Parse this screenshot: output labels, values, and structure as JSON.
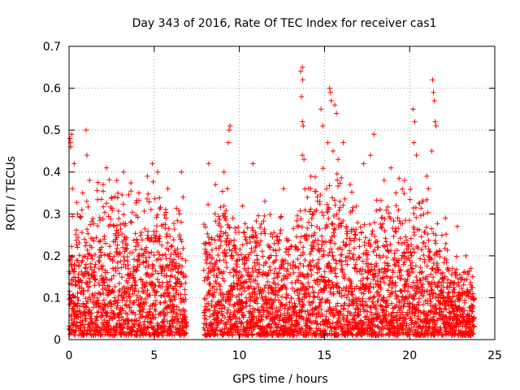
{
  "chart_data": {
    "type": "scatter",
    "title": "Day 343 of 2016, Rate Of TEC Index for receiver cas1",
    "xlabel": "GPS time / hours",
    "ylabel": "ROTI / TECUs",
    "xlim": [
      0,
      25
    ],
    "ylim": [
      0,
      0.7
    ],
    "x_ticks": [
      0,
      5,
      10,
      15,
      20,
      25
    ],
    "y_ticks": [
      0,
      0.1,
      0.2,
      0.3,
      0.4,
      0.5,
      0.6,
      0.7
    ],
    "x_tick_labels": [
      "0",
      "5",
      "10",
      "15",
      "20",
      "25"
    ],
    "y_tick_labels": [
      "0",
      "0.1",
      "0.2",
      "0.3",
      "0.4",
      "0.5",
      "0.6",
      "0.7"
    ],
    "grid": true,
    "marker": "+",
    "color": "#ff0000",
    "data_gaps_hours": [
      [
        6.9,
        7.9
      ],
      [
        23.8,
        25
      ]
    ],
    "series": [
      {
        "name": "ROTI",
        "points": [
          [
            0.05,
            0.48
          ],
          [
            0.08,
            0.47
          ],
          [
            0.1,
            0.46
          ],
          [
            0.15,
            0.49
          ],
          [
            0.2,
            0.36
          ],
          [
            0.3,
            0.42
          ],
          [
            0.5,
            0.3
          ],
          [
            0.8,
            0.35
          ],
          [
            1.0,
            0.5
          ],
          [
            1.05,
            0.44
          ],
          [
            1.2,
            0.38
          ],
          [
            2.0,
            0.37
          ],
          [
            2.2,
            0.41
          ],
          [
            2.8,
            0.38
          ],
          [
            3.2,
            0.4
          ],
          [
            4.1,
            0.35
          ],
          [
            4.6,
            0.39
          ],
          [
            4.9,
            0.42
          ],
          [
            5.2,
            0.4
          ],
          [
            5.8,
            0.36
          ],
          [
            6.6,
            0.4
          ],
          [
            6.7,
            0.34
          ],
          [
            8.2,
            0.42
          ],
          [
            8.6,
            0.37
          ],
          [
            9.1,
            0.4
          ],
          [
            9.3,
            0.36
          ],
          [
            9.35,
            0.47
          ],
          [
            9.4,
            0.5
          ],
          [
            9.45,
            0.51
          ],
          [
            10.8,
            0.42
          ],
          [
            11.5,
            0.33
          ],
          [
            12.6,
            0.36
          ],
          [
            13.6,
            0.64
          ],
          [
            13.7,
            0.65
          ],
          [
            13.72,
            0.62
          ],
          [
            13.65,
            0.58
          ],
          [
            13.7,
            0.52
          ],
          [
            13.75,
            0.51
          ],
          [
            13.7,
            0.44
          ],
          [
            13.8,
            0.43
          ],
          [
            14.2,
            0.39
          ],
          [
            14.8,
            0.55
          ],
          [
            14.9,
            0.51
          ],
          [
            15.2,
            0.47
          ],
          [
            15.3,
            0.6
          ],
          [
            15.35,
            0.59
          ],
          [
            15.4,
            0.57
          ],
          [
            15.6,
            0.56
          ],
          [
            15.7,
            0.54
          ],
          [
            15.5,
            0.45
          ],
          [
            15.8,
            0.43
          ],
          [
            16.1,
            0.47
          ],
          [
            16.5,
            0.37
          ],
          [
            17.3,
            0.42
          ],
          [
            17.7,
            0.44
          ],
          [
            17.9,
            0.49
          ],
          [
            18.5,
            0.38
          ],
          [
            18.9,
            0.41
          ],
          [
            19.2,
            0.35
          ],
          [
            19.7,
            0.38
          ],
          [
            20.2,
            0.55
          ],
          [
            20.3,
            0.52
          ],
          [
            20.25,
            0.47
          ],
          [
            20.4,
            0.44
          ],
          [
            20.8,
            0.33
          ],
          [
            21.0,
            0.39
          ],
          [
            21.1,
            0.36
          ],
          [
            21.35,
            0.62
          ],
          [
            21.4,
            0.59
          ],
          [
            21.45,
            0.57
          ],
          [
            21.5,
            0.52
          ],
          [
            21.55,
            0.51
          ],
          [
            21.3,
            0.45
          ],
          [
            22.1,
            0.29
          ],
          [
            22.8,
            0.27
          ],
          [
            23.3,
            0.2
          ],
          [
            23.6,
            0.17
          ],
          [
            23.7,
            0.15
          ]
        ]
      }
    ],
    "dense_band": {
      "note": "dense scatter of thousands of + markers, sampled every ~30s across 0-23.8 h",
      "min_value": 0.01,
      "typical_max_by_hour": [
        [
          0,
          0.25
        ],
        [
          1,
          0.28
        ],
        [
          2,
          0.3
        ],
        [
          3,
          0.3
        ],
        [
          4,
          0.3
        ],
        [
          5,
          0.32
        ],
        [
          6,
          0.3
        ],
        [
          6.9,
          0.25
        ],
        [
          7.9,
          0.25
        ],
        [
          8.5,
          0.3
        ],
        [
          9,
          0.32
        ],
        [
          10,
          0.25
        ],
        [
          11,
          0.25
        ],
        [
          12,
          0.25
        ],
        [
          13,
          0.22
        ],
        [
          14,
          0.32
        ],
        [
          15,
          0.35
        ],
        [
          16,
          0.32
        ],
        [
          17,
          0.28
        ],
        [
          18,
          0.28
        ],
        [
          19,
          0.3
        ],
        [
          20,
          0.3
        ],
        [
          21,
          0.3
        ],
        [
          22,
          0.22
        ],
        [
          23,
          0.15
        ],
        [
          23.8,
          0.12
        ]
      ]
    }
  }
}
